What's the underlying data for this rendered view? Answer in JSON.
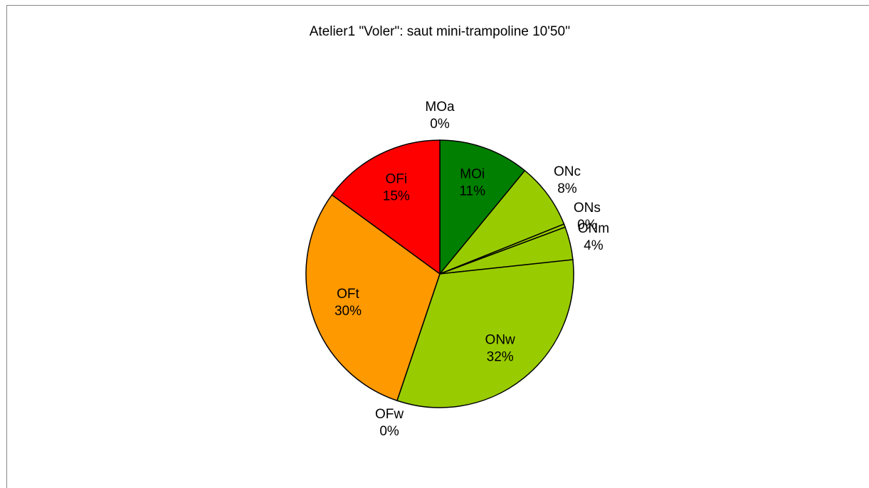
{
  "chart_data": {
    "type": "pie",
    "title": "Atelier1 \"Voler\": saut mini-trampoline 10'50''",
    "categories": [
      "MOa",
      "MOi",
      "ONc",
      "ONs",
      "ONm",
      "ONw",
      "OFw",
      "OFt",
      "OFi"
    ],
    "values": [
      0,
      11,
      8,
      0.4,
      4,
      32,
      0,
      30,
      15
    ],
    "value_labels": [
      "0%",
      "11%",
      "8%",
      "0%",
      "4%",
      "32%",
      "0%",
      "30%",
      "15%"
    ],
    "colors": [
      "#006600",
      "#007f00",
      "#99cc00",
      "#99cc00",
      "#99cc00",
      "#99cc00",
      "#ff9900",
      "#ff9900",
      "#ff0000"
    ]
  }
}
